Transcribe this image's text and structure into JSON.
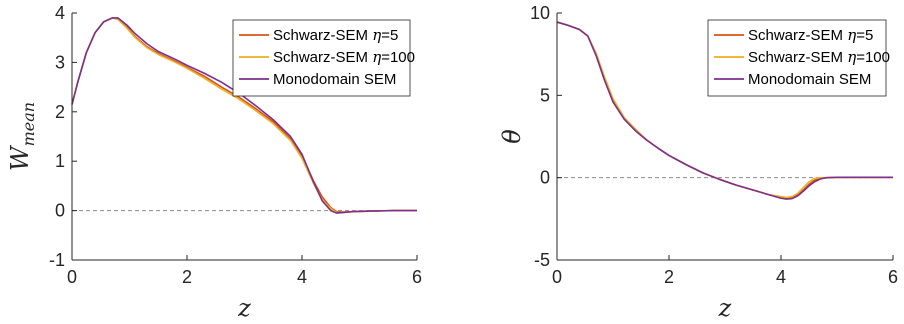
{
  "chart_data": [
    {
      "type": "line",
      "xlabel": "z",
      "ylabel": "W_mean",
      "ylabel_main": "W",
      "ylabel_sub": "mean",
      "xlim": [
        0,
        6
      ],
      "ylim": [
        -1,
        4
      ],
      "xticks": [
        "0",
        "2",
        "4",
        "6"
      ],
      "yticks": [
        "-1",
        "0",
        "1",
        "2",
        "3",
        "4"
      ],
      "zero_line": true,
      "legend": "top-right",
      "series": [
        {
          "name": "Schwarz-SEM η=5",
          "name_text": "Schwarz-SEM ",
          "name_eta": "η",
          "name_value": "=5",
          "color": "#D95319",
          "x": [
            0,
            0.1,
            0.25,
            0.4,
            0.55,
            0.7,
            0.8,
            0.95,
            1.1,
            1.3,
            1.5,
            1.8,
            2.0,
            2.3,
            2.6,
            2.9,
            3.2,
            3.5,
            3.8,
            4.0,
            4.2,
            4.35,
            4.5,
            4.6,
            4.7,
            4.9,
            5.2,
            5.6,
            6.0
          ],
          "y": [
            2.15,
            2.6,
            3.2,
            3.6,
            3.82,
            3.9,
            3.88,
            3.72,
            3.52,
            3.32,
            3.18,
            3.02,
            2.9,
            2.72,
            2.5,
            2.3,
            2.06,
            1.8,
            1.45,
            1.1,
            0.6,
            0.28,
            0.06,
            -0.02,
            -0.03,
            -0.02,
            -0.01,
            0.0,
            0.0
          ]
        },
        {
          "name": "Schwarz-SEM η=100",
          "name_text": "Schwarz-SEM ",
          "name_eta": "η",
          "name_value": "=100",
          "color": "#EDB120",
          "x": [
            0,
            0.1,
            0.25,
            0.4,
            0.55,
            0.7,
            0.8,
            0.95,
            1.1,
            1.3,
            1.5,
            1.8,
            2.0,
            2.3,
            2.6,
            2.9,
            3.2,
            3.5,
            3.8,
            4.0,
            4.2,
            4.35,
            4.5,
            4.6,
            4.7,
            4.9,
            5.2,
            5.6,
            6.0
          ],
          "y": [
            2.15,
            2.6,
            3.2,
            3.6,
            3.82,
            3.9,
            3.87,
            3.7,
            3.5,
            3.3,
            3.16,
            3.0,
            2.88,
            2.68,
            2.46,
            2.26,
            2.02,
            1.76,
            1.42,
            1.06,
            0.55,
            0.22,
            0.04,
            -0.04,
            -0.04,
            -0.02,
            -0.01,
            0.0,
            0.0
          ]
        },
        {
          "name": "Monodomain SEM",
          "color": "#7E2F8E",
          "x": [
            0,
            0.1,
            0.25,
            0.4,
            0.55,
            0.7,
            0.8,
            0.95,
            1.1,
            1.3,
            1.5,
            1.8,
            2.0,
            2.3,
            2.6,
            2.9,
            3.2,
            3.5,
            3.8,
            4.0,
            4.2,
            4.35,
            4.5,
            4.6,
            4.7,
            4.9,
            5.2,
            5.6,
            6.0
          ],
          "y": [
            2.15,
            2.6,
            3.2,
            3.6,
            3.82,
            3.9,
            3.9,
            3.76,
            3.58,
            3.38,
            3.22,
            3.06,
            2.94,
            2.78,
            2.6,
            2.38,
            2.12,
            1.84,
            1.5,
            1.14,
            0.58,
            0.2,
            0.0,
            -0.05,
            -0.04,
            -0.02,
            -0.01,
            0.0,
            0.0
          ]
        }
      ]
    },
    {
      "type": "line",
      "xlabel": "z",
      "ylabel": "θ̄",
      "ylabel_main": "θ",
      "xlim": [
        0,
        6
      ],
      "ylim": [
        -5,
        10
      ],
      "xticks": [
        "0",
        "2",
        "4",
        "6"
      ],
      "yticks": [
        "-5",
        "0",
        "5",
        "10"
      ],
      "zero_line": true,
      "legend": "top-right",
      "series": [
        {
          "name": "Schwarz-SEM η=5",
          "name_text": "Schwarz-SEM ",
          "name_eta": "η",
          "name_value": "=5",
          "color": "#D95319",
          "x": [
            0,
            0.2,
            0.4,
            0.55,
            0.7,
            0.85,
            1.0,
            1.2,
            1.4,
            1.6,
            1.8,
            2.0,
            2.3,
            2.6,
            2.9,
            3.2,
            3.5,
            3.8,
            4.0,
            4.1,
            4.2,
            4.3,
            4.4,
            4.5,
            4.6,
            4.7,
            4.8,
            5.0,
            5.5,
            6.0
          ],
          "y": [
            9.45,
            9.25,
            9.0,
            8.6,
            7.5,
            6.0,
            4.7,
            3.6,
            2.9,
            2.3,
            1.8,
            1.35,
            0.8,
            0.3,
            -0.1,
            -0.45,
            -0.75,
            -1.05,
            -1.2,
            -1.25,
            -1.22,
            -1.05,
            -0.75,
            -0.4,
            -0.15,
            -0.05,
            0.0,
            0.02,
            0.02,
            0.02
          ]
        },
        {
          "name": "Schwarz-SEM η=100",
          "name_text": "Schwarz-SEM ",
          "name_eta": "η",
          "name_value": "=100",
          "color": "#EDB120",
          "x": [
            0,
            0.2,
            0.4,
            0.55,
            0.7,
            0.85,
            1.0,
            1.2,
            1.4,
            1.6,
            1.8,
            2.0,
            2.3,
            2.6,
            2.9,
            3.2,
            3.5,
            3.8,
            4.0,
            4.1,
            4.2,
            4.3,
            4.4,
            4.5,
            4.6,
            4.7,
            4.8,
            5.0,
            5.5,
            6.0
          ],
          "y": [
            9.45,
            9.25,
            9.0,
            8.6,
            7.55,
            6.1,
            4.8,
            3.65,
            2.95,
            2.3,
            1.8,
            1.35,
            0.8,
            0.3,
            -0.1,
            -0.45,
            -0.75,
            -1.05,
            -1.15,
            -1.2,
            -1.15,
            -0.95,
            -0.6,
            -0.25,
            -0.05,
            0.0,
            0.0,
            0.02,
            0.02,
            0.02
          ]
        },
        {
          "name": "Monodomain SEM",
          "color": "#7E2F8E",
          "x": [
            0,
            0.2,
            0.4,
            0.55,
            0.7,
            0.85,
            1.0,
            1.2,
            1.4,
            1.6,
            1.8,
            2.0,
            2.3,
            2.6,
            2.9,
            3.2,
            3.5,
            3.8,
            4.0,
            4.1,
            4.2,
            4.3,
            4.4,
            4.5,
            4.6,
            4.7,
            4.8,
            5.0,
            5.5,
            6.0
          ],
          "y": [
            9.45,
            9.25,
            9.0,
            8.6,
            7.4,
            5.9,
            4.6,
            3.55,
            2.85,
            2.28,
            1.8,
            1.35,
            0.8,
            0.3,
            -0.1,
            -0.45,
            -0.75,
            -1.05,
            -1.25,
            -1.3,
            -1.27,
            -1.1,
            -0.82,
            -0.5,
            -0.25,
            -0.08,
            -0.01,
            0.02,
            0.02,
            0.02
          ]
        }
      ]
    }
  ]
}
